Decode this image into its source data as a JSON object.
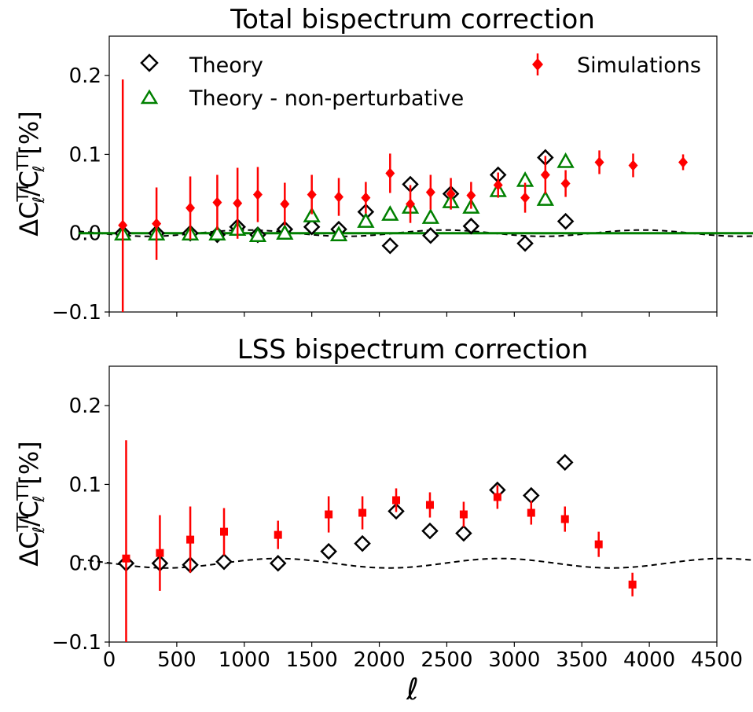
{
  "chart_data": [
    {
      "type": "scatter",
      "title": "Total bispectrum correction",
      "ylabel": "ΔCℓTT/CℓTT [%]",
      "xlim": [
        0,
        4500
      ],
      "ylim": [
        -0.1,
        0.25
      ],
      "yticks": [
        "−0.1",
        "0.0",
        "0.1",
        "0.2"
      ],
      "yticks_values": [
        -0.1,
        0.0,
        0.1,
        0.2
      ],
      "legend": {
        "theory": "Theory",
        "nonpert": "Theory - non-perturbative",
        "sims": "Simulations"
      },
      "series": [
        {
          "name": "Theory",
          "x": [
            100,
            350,
            600,
            800,
            950,
            1100,
            1300,
            1500,
            1700,
            1900,
            2080,
            2230,
            2380,
            2530,
            2680,
            2880,
            3080,
            3230,
            3380
          ],
          "y": [
            0.0,
            0.0,
            0.0,
            -0.002,
            0.008,
            -0.002,
            0.005,
            0.008,
            0.005,
            0.027,
            -0.016,
            0.062,
            -0.003,
            0.05,
            0.009,
            0.074,
            -0.013,
            0.096,
            0.015
          ]
        },
        {
          "name": "Theory - non-perturbative",
          "x": [
            100,
            350,
            600,
            800,
            950,
            1100,
            1300,
            1500,
            1700,
            1900,
            2080,
            2230,
            2380,
            2530,
            2680,
            2880,
            3080,
            3230,
            3380
          ],
          "y": [
            -0.001,
            -0.001,
            -0.001,
            -0.001,
            0.005,
            -0.003,
            0.0,
            0.022,
            -0.002,
            0.015,
            0.024,
            0.033,
            0.02,
            0.04,
            0.033,
            0.054,
            0.067,
            0.043,
            0.091
          ]
        },
        {
          "name": "Simulations",
          "x": [
            100,
            350,
            600,
            800,
            950,
            1100,
            1300,
            1500,
            1700,
            1900,
            2080,
            2230,
            2380,
            2530,
            2680,
            2880,
            3080,
            3230,
            3380,
            3630,
            3880,
            4250
          ],
          "y": [
            0.01,
            0.012,
            0.032,
            0.039,
            0.038,
            0.049,
            0.037,
            0.049,
            0.046,
            0.045,
            0.076,
            0.037,
            0.052,
            0.05,
            0.048,
            0.061,
            0.045,
            0.074,
            0.063,
            0.09,
            0.086,
            0.09
          ],
          "err": [
            0.185,
            0.046,
            0.04,
            0.035,
            0.045,
            0.035,
            0.027,
            0.025,
            0.024,
            0.02,
            0.025,
            0.024,
            0.022,
            0.02,
            0.017,
            0.016,
            0.019,
            0.024,
            0.017,
            0.015,
            0.015,
            0.01
          ]
        }
      ]
    },
    {
      "type": "scatter",
      "title": "LSS bispectrum correction",
      "xlabel": "ℓ",
      "ylabel": "ΔCℓTT/CℓTT [%]",
      "xlim": [
        0,
        4500
      ],
      "ylim": [
        -0.1,
        0.25
      ],
      "xticks": [
        "0",
        "500",
        "1000",
        "1500",
        "2000",
        "2500",
        "3000",
        "3500",
        "4000",
        "4500"
      ],
      "xticks_values": [
        0,
        500,
        1000,
        1500,
        2000,
        2500,
        3000,
        3500,
        4000,
        4500
      ],
      "yticks": [
        "−0.1",
        "0.0",
        "0.1",
        "0.2"
      ],
      "yticks_values": [
        -0.1,
        0.0,
        0.1,
        0.2
      ],
      "series": [
        {
          "name": "Theory",
          "x": [
            125,
            375,
            600,
            850,
            1250,
            1625,
            1875,
            2125,
            2375,
            2625,
            2875,
            3125,
            3375
          ],
          "y": [
            0.0,
            0.0,
            -0.002,
            0.002,
            0.0,
            0.015,
            0.025,
            0.066,
            0.041,
            0.038,
            0.093,
            0.086,
            0.128
          ]
        },
        {
          "name": "Simulations",
          "x": [
            125,
            375,
            600,
            850,
            1250,
            1625,
            1875,
            2125,
            2375,
            2625,
            2875,
            3125,
            3375,
            3625,
            3875
          ],
          "y": [
            0.006,
            0.013,
            0.03,
            0.04,
            0.036,
            0.062,
            0.064,
            0.08,
            0.074,
            0.062,
            0.084,
            0.064,
            0.056,
            0.024,
            -0.027
          ],
          "err": [
            0.15,
            0.048,
            0.042,
            0.03,
            0.018,
            0.023,
            0.021,
            0.015,
            0.016,
            0.016,
            0.015,
            0.015,
            0.016,
            0.016,
            0.015
          ]
        }
      ]
    }
  ]
}
